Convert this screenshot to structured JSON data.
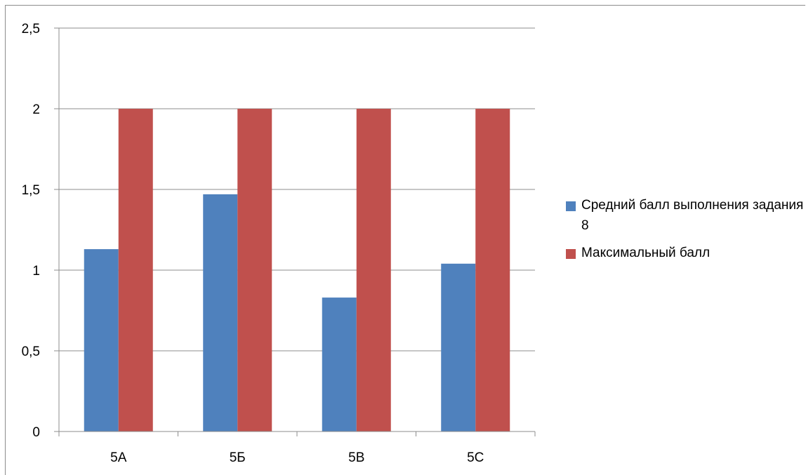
{
  "chart_data": {
    "type": "bar",
    "categories": [
      "5А",
      "5Б",
      "5В",
      "5С"
    ],
    "series": [
      {
        "name": "Средний балл выполнения задания 8",
        "values": [
          1.13,
          1.47,
          0.83,
          1.04
        ],
        "color": "#4F81BD"
      },
      {
        "name": "Максимальный балл",
        "values": [
          2,
          2,
          2,
          2
        ],
        "color": "#C0504D"
      }
    ],
    "ylim": [
      0,
      2.5
    ],
    "yticks": [
      "0",
      "0,5",
      "1",
      "1,5",
      "2",
      "2,5"
    ],
    "grid": true,
    "legend_position": "right"
  }
}
